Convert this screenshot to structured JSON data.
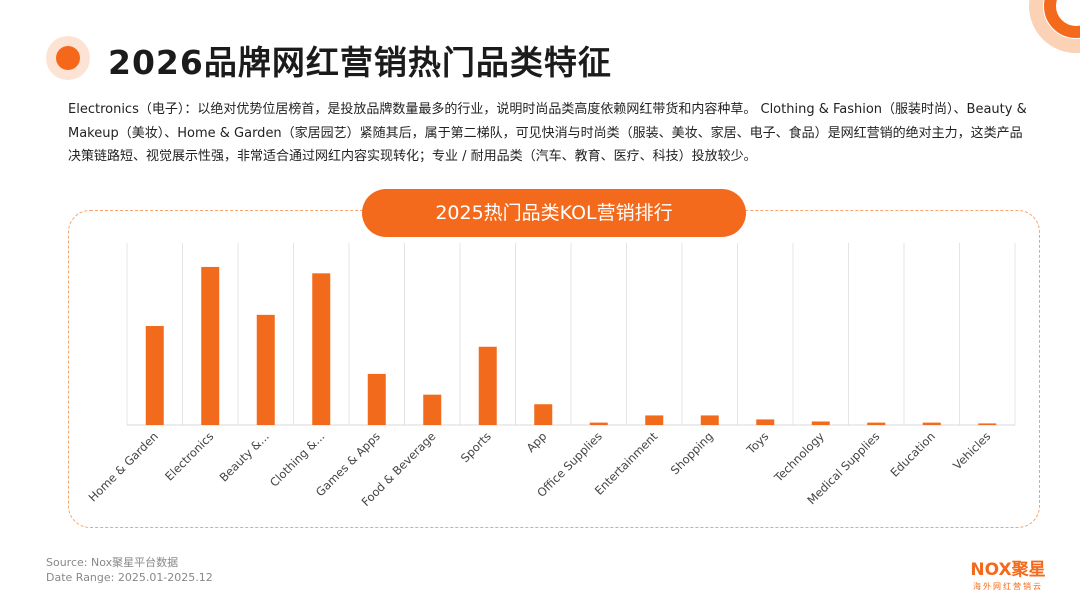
{
  "page_title": "2026品牌网红营销热门品类特征",
  "description": "Electronics（电子）：以绝对优势位居榜首，是投放品牌数量最多的行业，说明时尚品类高度依赖网红带货和内容种草。 Clothing & Fashion（服装时尚）、Beauty & Makeup（美妆）、Home & Garden（家居园艺）紧随其后，属于第二梯队，可见快消与时尚类（服装、美妆、家居、电子、食品）是网红营销的绝对主力，这类产品决策链路短、视觉展示性强，非常适合通过网红内容实现转化；专业 / 耐用品类（汽车、教育、医疗、科技）投放较少。",
  "source_line": "Source:   Nox聚星平台数据",
  "date_line": "Date Range:  2025.01-2025.12",
  "logo": {
    "main": "NOX聚星",
    "sub": "海外网红营销云"
  },
  "colors": {
    "accent": "#f46a1c",
    "bar": "#f26b1d",
    "frame": "#f7a46c"
  },
  "chart_data": {
    "type": "bar",
    "title": "2025热门品类KOL营销排行",
    "categories": [
      "Home & Garden",
      "Electronics",
      "Beauty &...",
      "Clothing &...",
      "Games & Apps",
      "Food & Beverage",
      "Sports",
      "App",
      "Office Supplies",
      "Entertainment",
      "Shopping",
      "Toys",
      "Technology",
      "Medical Supplies",
      "Education",
      "Vehicles"
    ],
    "values": [
      62,
      99,
      69,
      95,
      32,
      19,
      49,
      13,
      1.5,
      6,
      6,
      3.5,
      2.2,
      1.5,
      1.5,
      1
    ],
    "ylim": [
      0,
      114
    ],
    "grid": "vertical",
    "xlabel": "",
    "ylabel": ""
  }
}
